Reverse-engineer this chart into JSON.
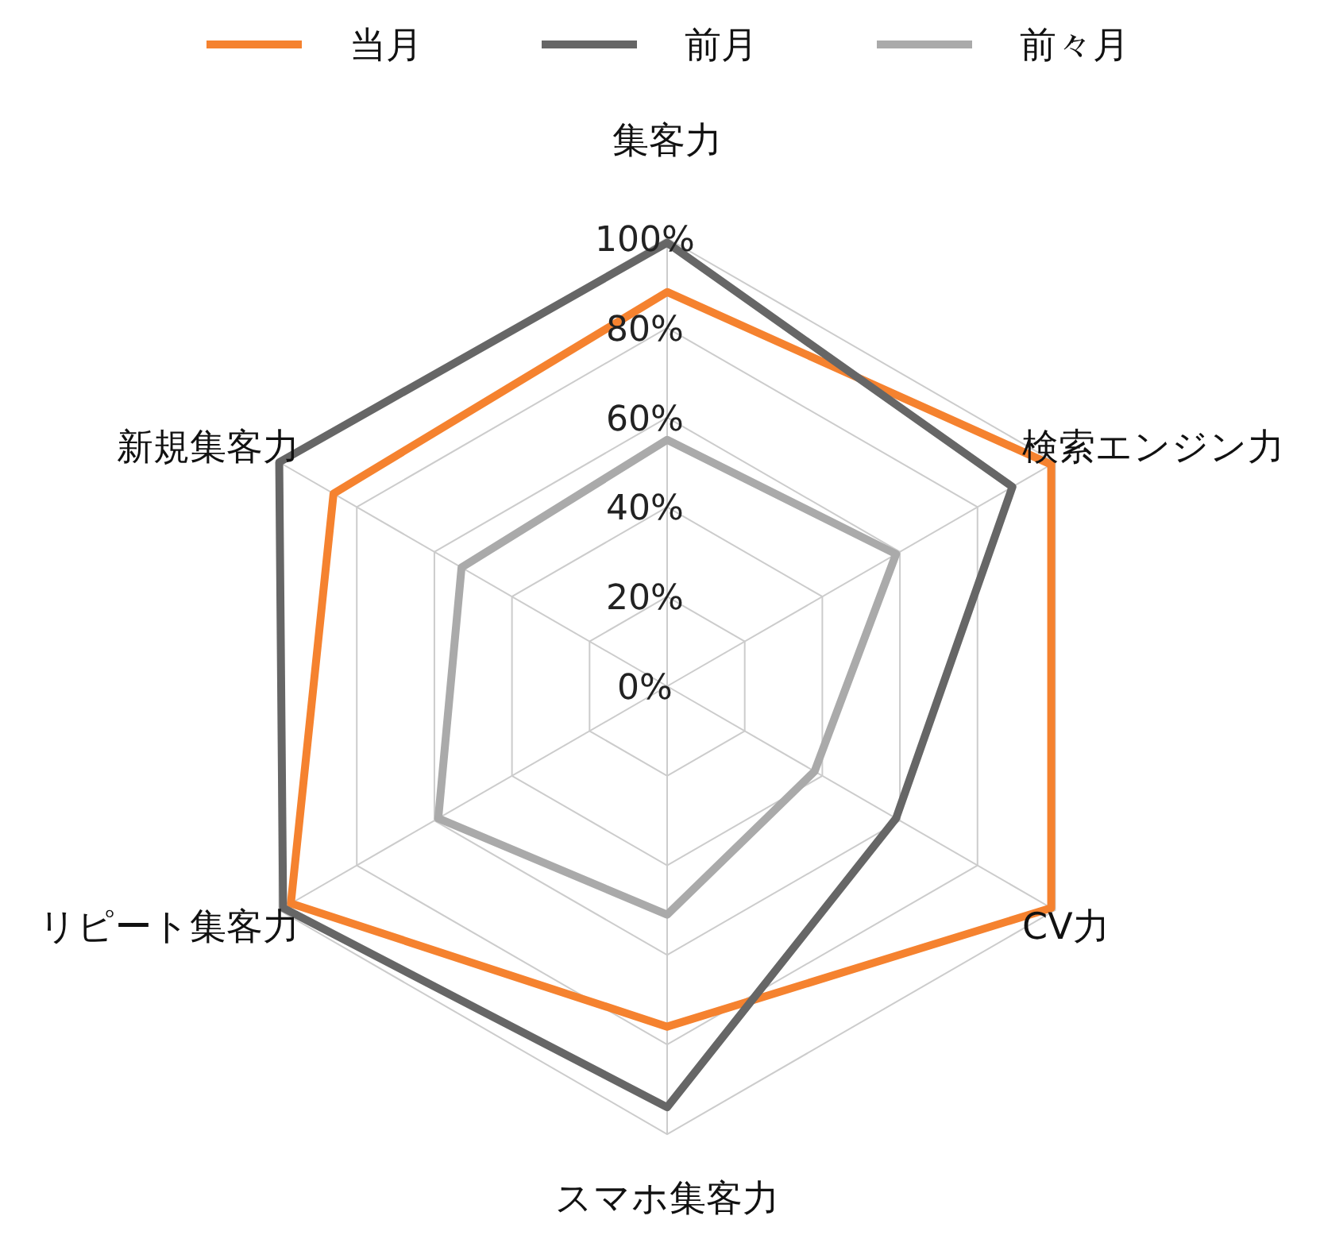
{
  "chart_data": {
    "type": "radar",
    "categories": [
      "集客力",
      "検索エンジン力",
      "CV力",
      "スマホ集客力",
      "リピート集客力",
      "新規集客力"
    ],
    "series": [
      {
        "name": "当月",
        "color": "#f5822f",
        "values": [
          88,
          99,
          99,
          76,
          97,
          86
        ]
      },
      {
        "name": "前月",
        "color": "#666666",
        "values": [
          99,
          89,
          59,
          94,
          99,
          100
        ]
      },
      {
        "name": "前々月",
        "color": "#aaaaaa",
        "values": [
          55,
          59,
          38,
          51,
          59,
          53
        ]
      }
    ],
    "ylim": [
      0,
      100
    ],
    "yticks": [
      {
        "value": 0,
        "label": "0%"
      },
      {
        "value": 20,
        "label": "20%"
      },
      {
        "value": 40,
        "label": "40%"
      },
      {
        "value": 60,
        "label": "60%"
      },
      {
        "value": 80,
        "label": "80%"
      },
      {
        "value": 100,
        "label": "100%"
      }
    ],
    "grid": true,
    "legend": "top"
  }
}
